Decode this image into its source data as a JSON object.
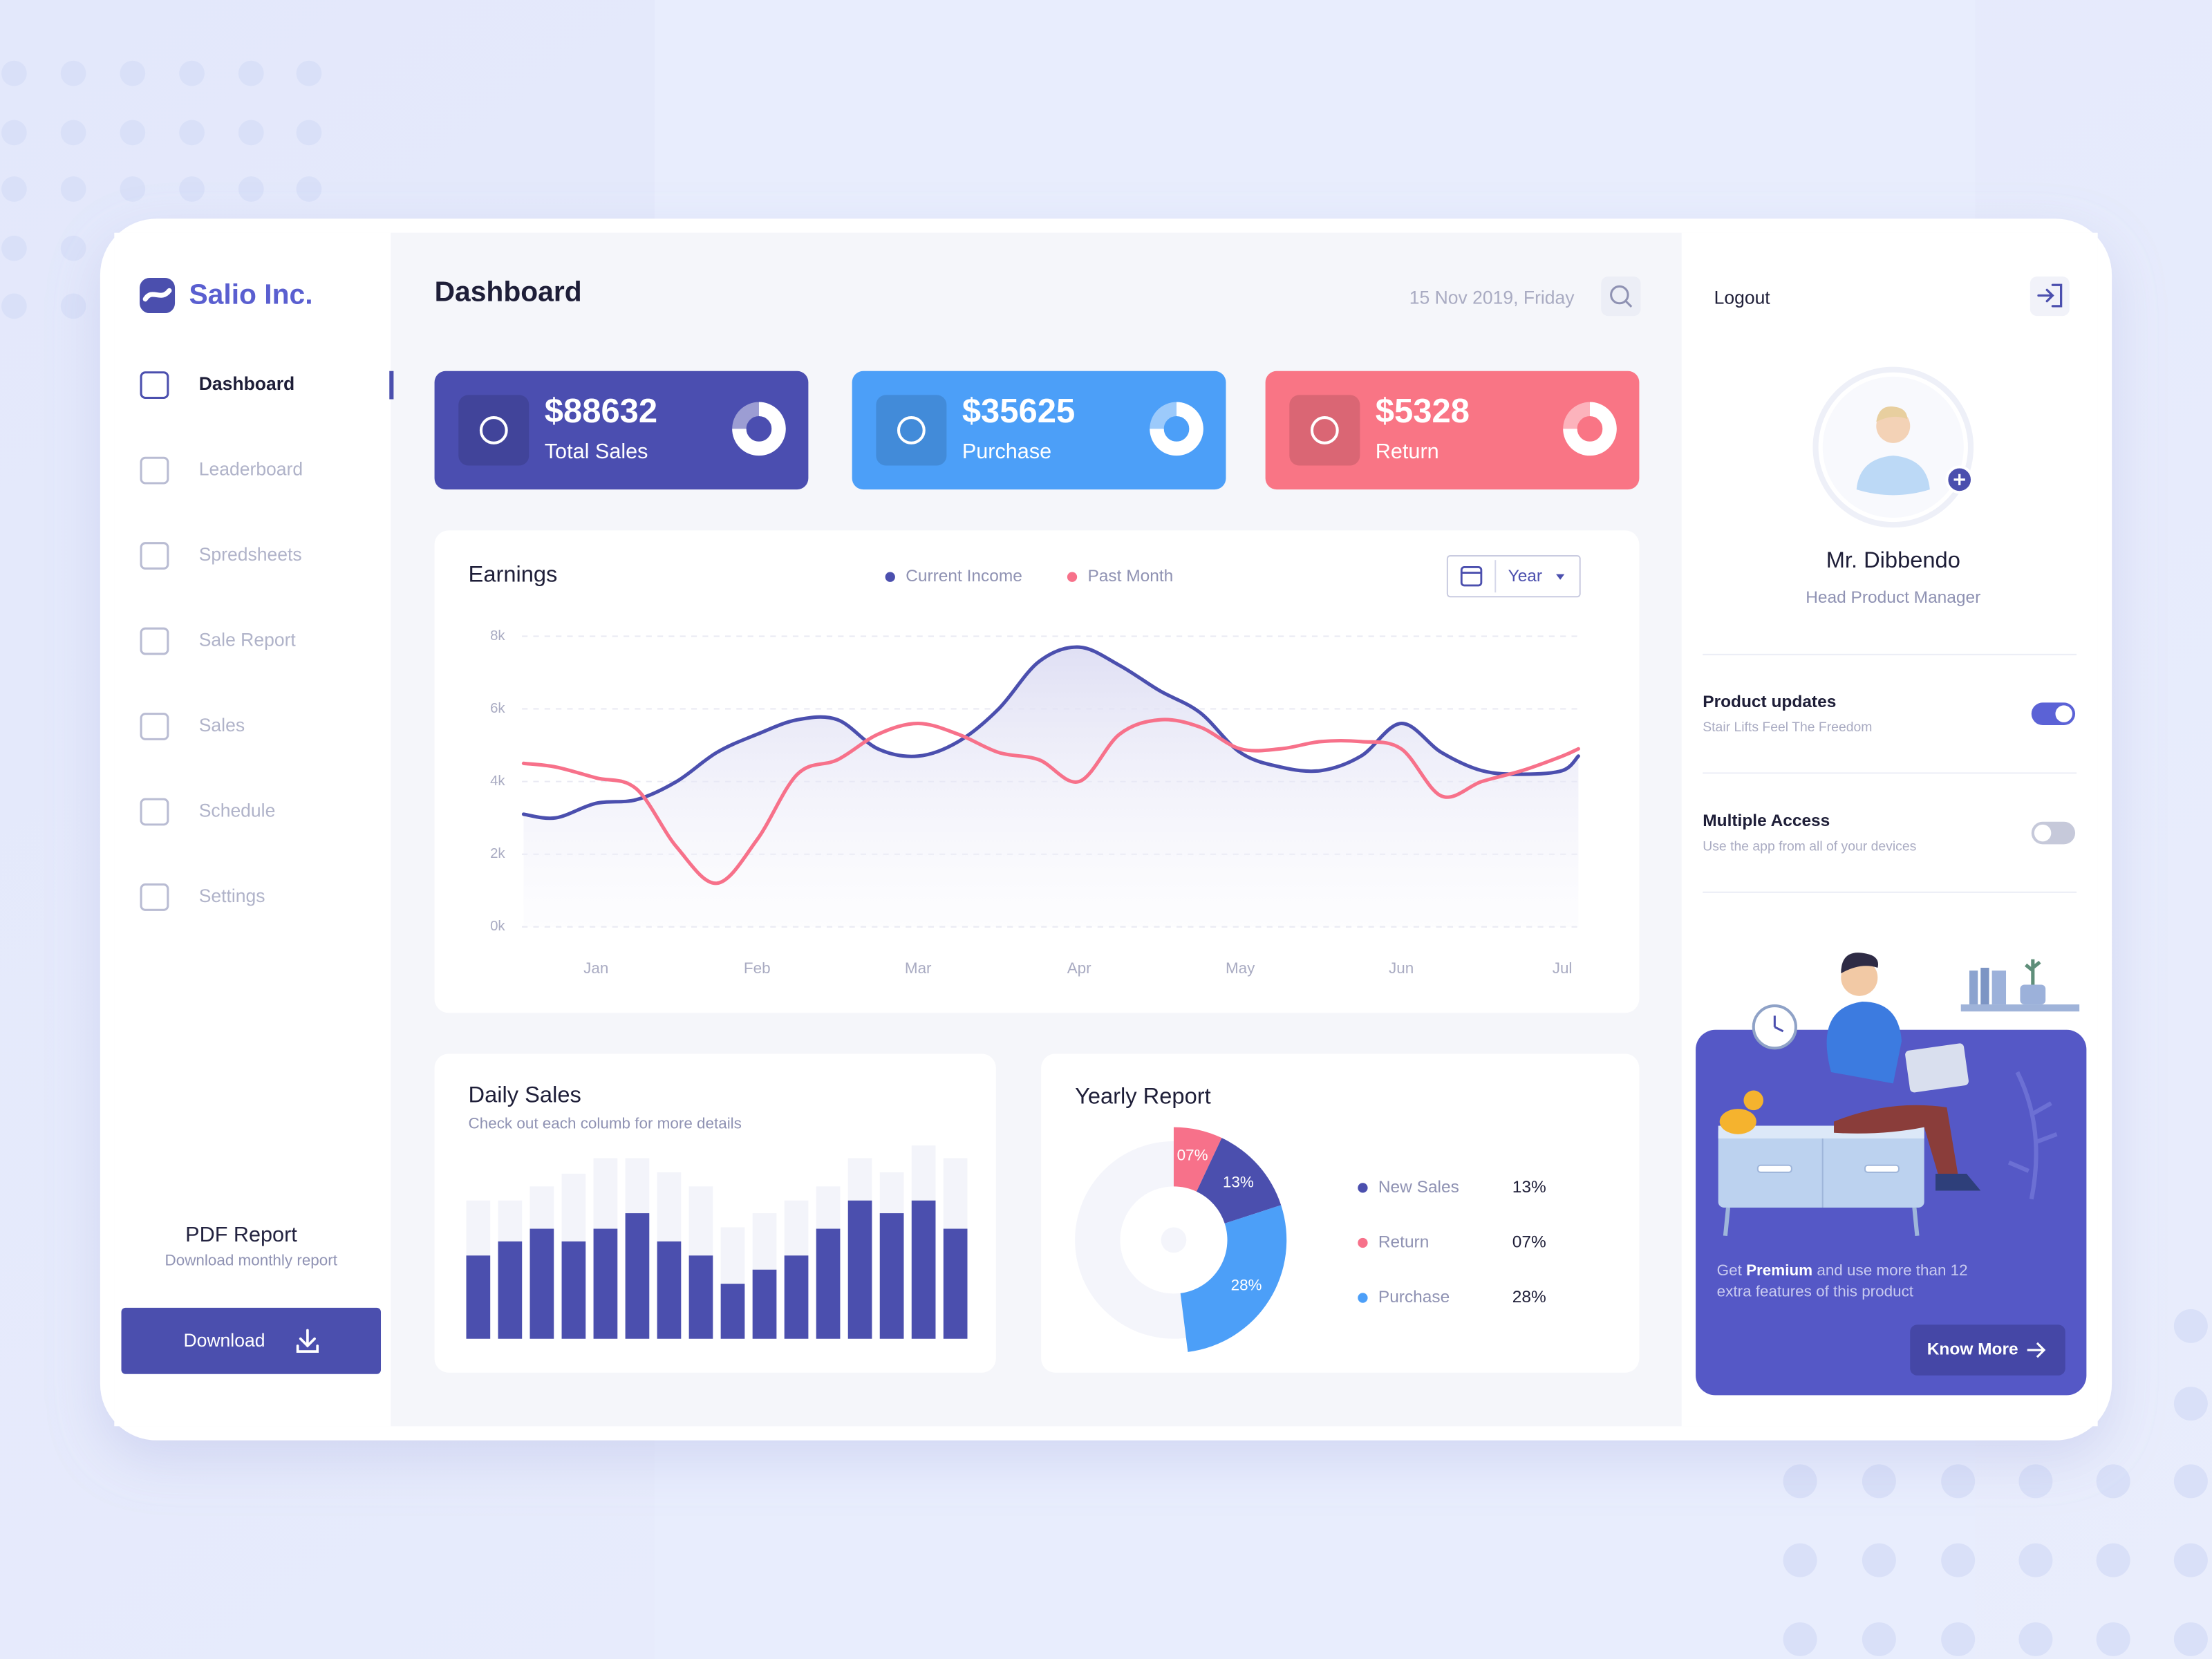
{
  "sidebar": {
    "brand": "Salio Inc.",
    "nav": [
      "Dashboard",
      "Leaderboard",
      "Spredsheets",
      "Sale Report",
      "Sales",
      "Schedule",
      "Settings"
    ],
    "pdf_title": "PDF Report",
    "pdf_subtitle": "Download monthly report",
    "download": "Download"
  },
  "header": {
    "title": "Dashboard",
    "date": "15 Nov 2019, Friday"
  },
  "cards": [
    {
      "value": "$88632",
      "label": "Total Sales",
      "color": "#4b4eb0"
    },
    {
      "value": "$35625",
      "label": "Purchase",
      "color": "#4c9ff8"
    },
    {
      "value": "$5328",
      "label": "Return",
      "color": "#f97585"
    }
  ],
  "chart_data": [
    {
      "type": "line",
      "title": "Earnings",
      "period": "Year",
      "x": [
        -0.45,
        -0.25,
        0,
        0.25,
        0.5,
        0.75,
        1,
        1.25,
        1.5,
        1.75,
        2,
        2.25,
        2.5,
        2.75,
        3,
        3.25,
        3.5,
        3.75,
        4,
        4.25,
        4.5,
        4.75,
        5,
        5.25,
        5.5,
        5.75,
        6,
        6.1
      ],
      "xlim": [
        -0.46,
        6.11
      ],
      "xticks": [
        {
          "value": 0,
          "label": "Jan"
        },
        {
          "value": 1,
          "label": "Feb"
        },
        {
          "value": 2,
          "label": "Mar"
        },
        {
          "value": 3,
          "label": "Apr"
        },
        {
          "value": 4,
          "label": "May"
        },
        {
          "value": 5,
          "label": "Jun"
        },
        {
          "value": 6,
          "label": "Jul"
        }
      ],
      "ylim": [
        0,
        8
      ],
      "yticks": [
        {
          "value": 0,
          "label": "0k"
        },
        {
          "value": 2,
          "label": "2k"
        },
        {
          "value": 4,
          "label": "4k"
        },
        {
          "value": 6,
          "label": "6k"
        },
        {
          "value": 8,
          "label": "8k"
        }
      ],
      "grid": true,
      "series": [
        {
          "name": "Current Income",
          "color": "#4b4fae",
          "values": [
            3.1,
            3.0,
            3.4,
            3.5,
            4.0,
            4.8,
            5.3,
            5.7,
            5.7,
            4.9,
            4.7,
            5.1,
            6.0,
            7.3,
            7.7,
            7.2,
            6.5,
            5.9,
            4.8,
            4.4,
            4.3,
            4.7,
            5.6,
            4.8,
            4.3,
            4.2,
            4.3,
            4.7
          ]
        },
        {
          "name": "Past Month",
          "color": "#f7718a",
          "values": [
            4.5,
            4.4,
            4.1,
            3.8,
            2.2,
            1.2,
            2.4,
            4.2,
            4.6,
            5.3,
            5.6,
            5.3,
            4.8,
            4.6,
            4.0,
            5.3,
            5.7,
            5.5,
            4.9,
            4.9,
            5.1,
            5.1,
            4.9,
            3.6,
            4.0,
            4.3,
            4.7,
            4.9
          ]
        }
      ]
    },
    {
      "type": "bar",
      "title": "Daily Sales",
      "subtitle": "Check out each columb for more details",
      "series": [
        {
          "color": "#f3f4fa",
          "values": [
            98,
            98,
            108,
            117,
            128,
            128,
            118,
            108,
            79,
            89,
            98,
            108,
            128,
            118,
            137,
            128
          ]
        },
        {
          "color": "#4b4fae",
          "values": [
            59,
            69,
            78,
            69,
            78,
            89,
            69,
            59,
            39,
            49,
            59,
            78,
            98,
            89,
            98,
            78
          ]
        }
      ]
    },
    {
      "type": "donut",
      "title": "Yearly Report",
      "categories": [
        "New Sales",
        "Return",
        "Purchase"
      ],
      "values": [
        13,
        7,
        28
      ],
      "value_labels": [
        "13%",
        "07%",
        "28%"
      ],
      "colors": [
        "#4b4fae",
        "#f7718a",
        "#4c9ff8"
      ]
    }
  ],
  "profile": {
    "logout": "Logout",
    "name": "Mr. Dibbendo",
    "role": "Head Product Manager"
  },
  "settings": [
    {
      "title": "Product updates",
      "subtitle": "Stair Lifts Feel The Freedom",
      "enabled": true
    },
    {
      "title": "Multiple Access",
      "subtitle": "Use the app from all of your devices",
      "enabled": false
    }
  ],
  "promo": {
    "lead": "Get",
    "highlight": "Premium",
    "rest": "and use more than 12",
    "line2": "extra features of this product",
    "button": "Know More"
  }
}
